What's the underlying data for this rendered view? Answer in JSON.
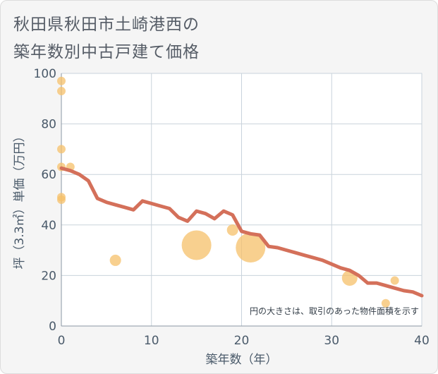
{
  "title_lines": [
    "秋田県秋田市土崎港西の",
    "築年数別中古戸建て価格"
  ],
  "chart_data": {
    "type": "scatter+line",
    "title": "秋田県秋田市土崎港西の築年数別中古戸建て価格",
    "xlabel": "築年数（年）",
    "ylabel": "坪（3.3㎡）単価（万円）",
    "xlim": [
      0,
      40
    ],
    "ylim": [
      0,
      100
    ],
    "xticks": [
      0,
      10,
      20,
      30,
      40
    ],
    "yticks": [
      0,
      20,
      40,
      60,
      80,
      100
    ],
    "grid": true,
    "annotation": "円の大きさは、取引のあった物件面積を示す",
    "colors": {
      "line": "#d4705a",
      "bubble": "#f5c069",
      "axis_text": "#4a5a6a",
      "grid": "#c9d3dc"
    },
    "scatter": [
      {
        "x": 0,
        "y": 97,
        "size": "small"
      },
      {
        "x": 0,
        "y": 93,
        "size": "small"
      },
      {
        "x": 0,
        "y": 70,
        "size": "small"
      },
      {
        "x": 0,
        "y": 63,
        "size": "small"
      },
      {
        "x": 0,
        "y": 51,
        "size": "small"
      },
      {
        "x": 0,
        "y": 50,
        "size": "small"
      },
      {
        "x": 1,
        "y": 63,
        "size": "small"
      },
      {
        "x": 6,
        "y": 26,
        "size": "medium"
      },
      {
        "x": 15,
        "y": 32,
        "size": "xlarge"
      },
      {
        "x": 19,
        "y": 38,
        "size": "medium"
      },
      {
        "x": 21,
        "y": 31,
        "size": "xlarge"
      },
      {
        "x": 32,
        "y": 19,
        "size": "large"
      },
      {
        "x": 36,
        "y": 9,
        "size": "small"
      },
      {
        "x": 37,
        "y": 18,
        "size": "small"
      }
    ],
    "line": {
      "x": [
        0,
        1,
        2,
        3,
        4,
        5,
        6,
        7,
        8,
        9,
        10,
        11,
        12,
        13,
        14,
        15,
        16,
        17,
        18,
        19,
        20,
        21,
        22,
        23,
        24,
        25,
        26,
        27,
        28,
        29,
        30,
        31,
        32,
        33,
        34,
        35,
        36,
        37,
        38,
        39,
        40
      ],
      "y": [
        62.5,
        61.5,
        60,
        57.5,
        50.5,
        49,
        48,
        47,
        46,
        49.5,
        48.5,
        47.5,
        46.5,
        43,
        41.5,
        45.5,
        44.5,
        42.5,
        45.5,
        44,
        37.5,
        36.5,
        36,
        31.5,
        31,
        30,
        29,
        28,
        27,
        26,
        24.5,
        23,
        22,
        20,
        17,
        17,
        16,
        15,
        14,
        13.5,
        12
      ]
    }
  }
}
